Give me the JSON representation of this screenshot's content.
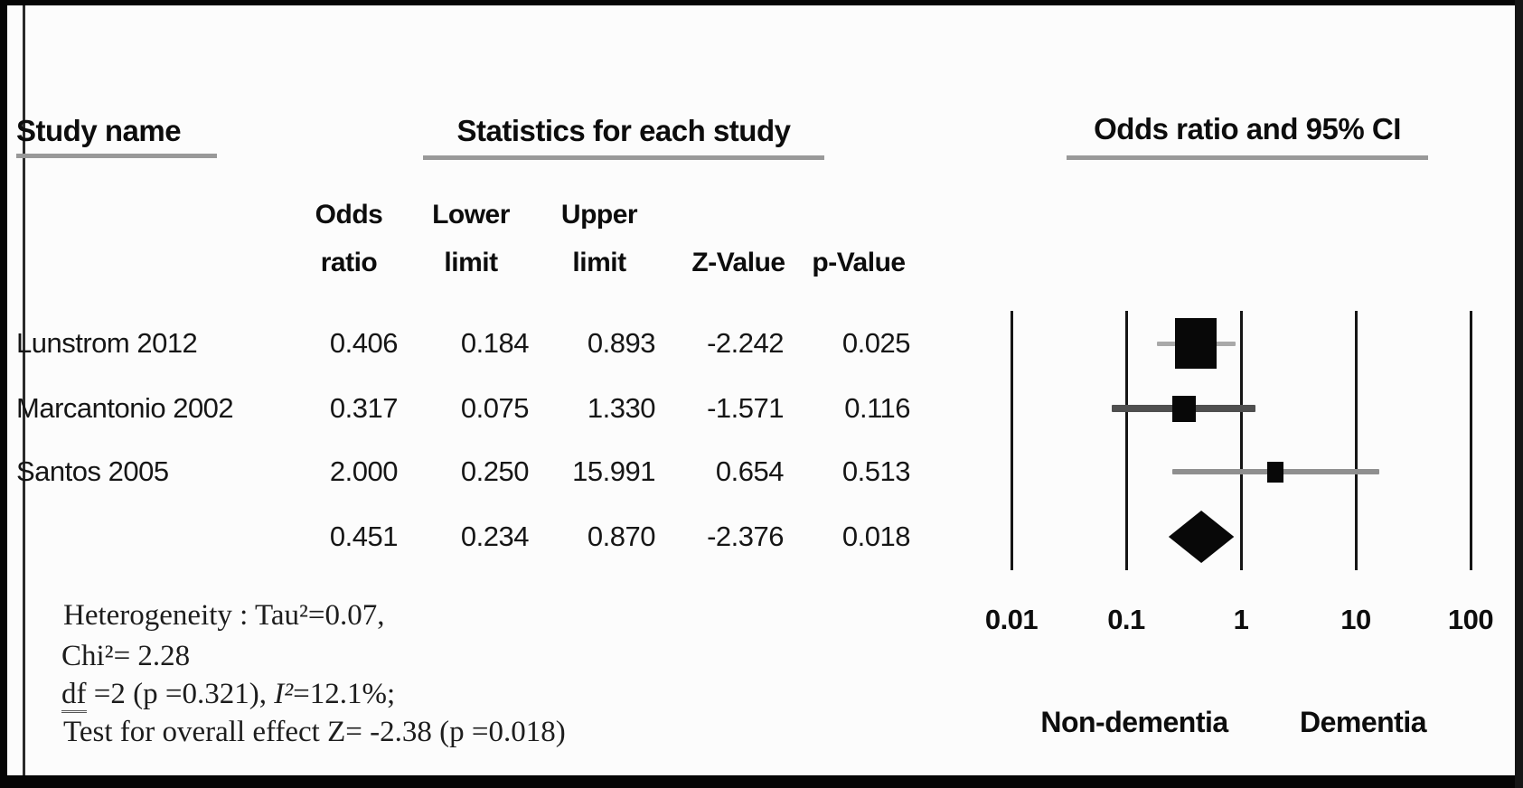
{
  "headers": {
    "study_name": "Study name",
    "statistics": "Statistics for each study",
    "or_ci": "Odds ratio and 95% CI"
  },
  "columns": [
    {
      "line1": "Odds",
      "line2": "ratio"
    },
    {
      "line1": "Lower",
      "line2": "limit"
    },
    {
      "line1": "Upper",
      "line2": "limit"
    },
    {
      "line1": "",
      "line2": "Z-Value"
    },
    {
      "line1": "",
      "line2": "p-Value"
    }
  ],
  "rows": [
    {
      "name": "Lunstrom 2012",
      "odds": "0.406",
      "lower": "0.184",
      "upper": "0.893",
      "z": "-2.242",
      "p": "0.025"
    },
    {
      "name": "Marcantonio 2002",
      "odds": "0.317",
      "lower": "0.075",
      "upper": "1.330",
      "z": "-1.571",
      "p": "0.116"
    },
    {
      "name": "Santos 2005",
      "odds": "2.000",
      "lower": "0.250",
      "upper": "15.991",
      "z": "0.654",
      "p": "0.513"
    },
    {
      "name": "",
      "odds": "0.451",
      "lower": "0.234",
      "upper": "0.870",
      "z": "-2.376",
      "p": "0.018"
    }
  ],
  "footnotes": {
    "line1": "Heterogeneity : Tau²=0.07,",
    "line2": "Chi²= 2.28",
    "line3_df": "df",
    "line3_mid": " =2 (p =0.321), ",
    "line3_i2": "I²",
    "line3_end": "=12.1%;",
    "line4": "Test for overall effect Z= -2.38 (p =0.018)"
  },
  "chart_data": {
    "type": "forest_scatter",
    "title": "Odds ratio and 95% CI",
    "x_axis": {
      "scale": "log10",
      "ticks": [
        0.01,
        0.1,
        1,
        10,
        100
      ],
      "tick_labels": [
        "0.01",
        "0.1",
        "1",
        "10",
        "100"
      ],
      "xlim": [
        0.01,
        100
      ]
    },
    "grid": "vertical-decade-lines",
    "studies": [
      {
        "name": "Lunstrom 2012",
        "or": 0.406,
        "lower": 0.184,
        "upper": 0.893,
        "z": -2.242,
        "p": 0.025,
        "marker_w": 46,
        "marker_h": 56,
        "ci_color": "#a9a9a9",
        "ci_thickness": 5
      },
      {
        "name": "Marcantonio 2002",
        "or": 0.317,
        "lower": 0.075,
        "upper": 1.33,
        "z": -1.571,
        "p": 0.116,
        "marker_w": 26,
        "marker_h": 29,
        "ci_color": "#4f4f4f",
        "ci_thickness": 8
      },
      {
        "name": "Santos 2005",
        "or": 2.0,
        "lower": 0.25,
        "upper": 15.991,
        "z": 0.654,
        "p": 0.513,
        "marker_w": 18,
        "marker_h": 23,
        "ci_color": "#8f8f8f",
        "ci_thickness": 6
      }
    ],
    "summary": {
      "or": 0.451,
      "lower": 0.234,
      "upper": 0.87,
      "z": -2.376,
      "p": 0.018,
      "shape": "diamond",
      "height": 58,
      "color": "#080808"
    },
    "heterogeneity": {
      "tau2": 0.07,
      "chi2": 2.28,
      "df": 2,
      "p": 0.321,
      "I2_pct": 12.1
    },
    "overall_effect": {
      "z": -2.38,
      "p": 0.018
    },
    "direction_labels": {
      "left": "Non-dementia",
      "right": "Dementia"
    },
    "marker_color": "#080808"
  }
}
